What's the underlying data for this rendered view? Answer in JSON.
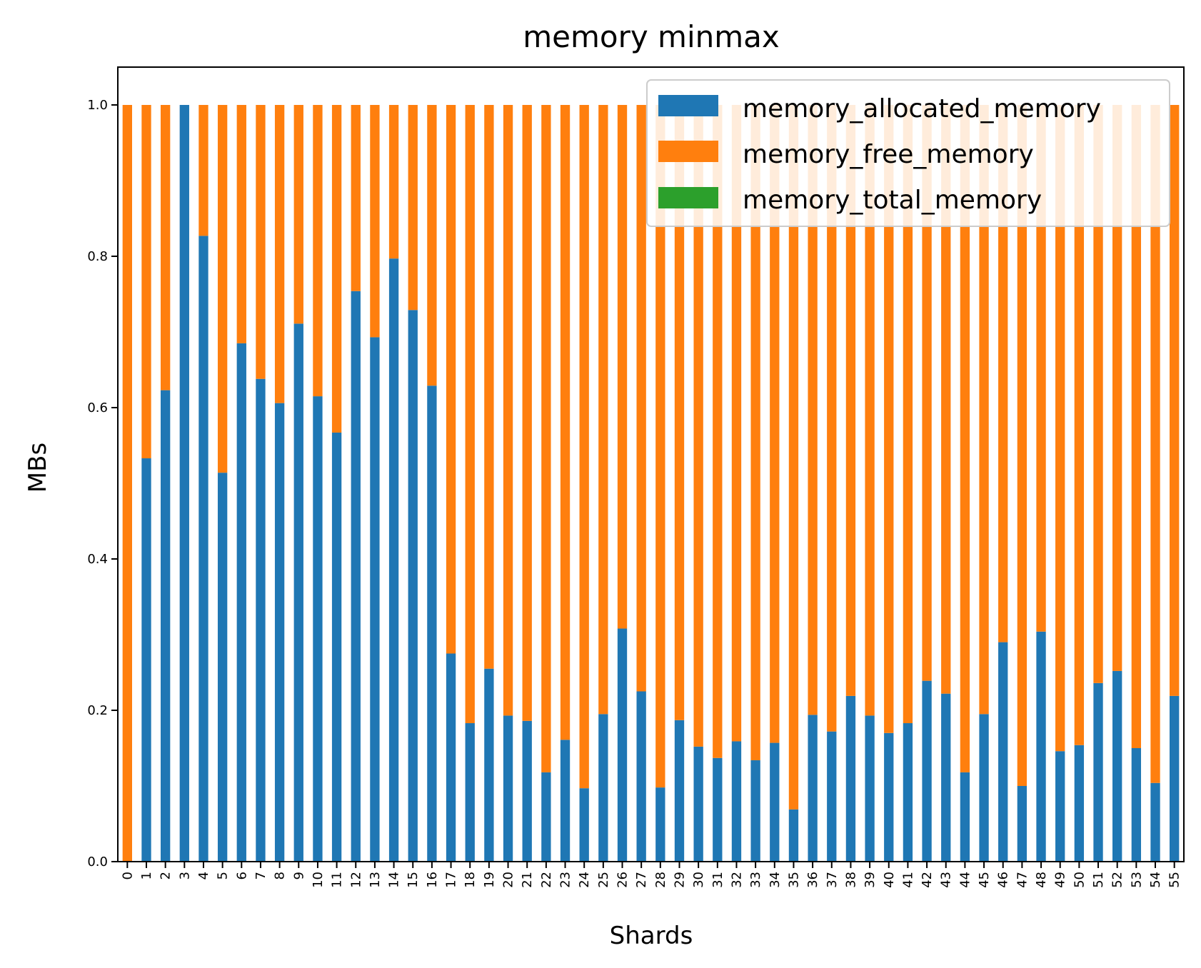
{
  "chart_data": {
    "type": "bar",
    "stacked": true,
    "title": "memory minmax",
    "xlabel": "Shards",
    "ylabel": "MBs",
    "ylim": [
      0,
      1.05
    ],
    "yticks": [
      "0.0",
      "0.2",
      "0.4",
      "0.6",
      "0.8",
      "1.0"
    ],
    "grid": false,
    "legend_position": "top-right",
    "categories": [
      "0",
      "1",
      "2",
      "3",
      "4",
      "5",
      "6",
      "7",
      "8",
      "9",
      "10",
      "11",
      "12",
      "13",
      "14",
      "15",
      "16",
      "17",
      "18",
      "19",
      "20",
      "21",
      "22",
      "23",
      "24",
      "25",
      "26",
      "27",
      "28",
      "29",
      "30",
      "31",
      "32",
      "33",
      "34",
      "35",
      "36",
      "37",
      "38",
      "39",
      "40",
      "41",
      "42",
      "43",
      "44",
      "45",
      "46",
      "47",
      "48",
      "49",
      "50",
      "51",
      "52",
      "53",
      "54",
      "55"
    ],
    "series": [
      {
        "name": "memory_allocated_memory",
        "color": "#1f77b4",
        "values": [
          0.0,
          0.533,
          0.623,
          1.0,
          0.827,
          0.514,
          0.685,
          0.638,
          0.606,
          0.711,
          0.615,
          0.567,
          0.754,
          0.693,
          0.797,
          0.729,
          0.629,
          0.275,
          0.183,
          0.255,
          0.193,
          0.186,
          0.118,
          0.161,
          0.097,
          0.195,
          0.308,
          0.225,
          0.098,
          0.187,
          0.152,
          0.137,
          0.159,
          0.134,
          0.157,
          0.069,
          0.194,
          0.172,
          0.219,
          0.193,
          0.17,
          0.183,
          0.239,
          0.222,
          0.118,
          0.195,
          0.29,
          0.1,
          0.304,
          0.146,
          0.154,
          0.236,
          0.252,
          0.15,
          0.104,
          0.219
        ]
      },
      {
        "name": "memory_free_memory",
        "color": "#ff7f0e",
        "values": [
          1.0,
          0.467,
          0.377,
          0.0,
          0.173,
          0.486,
          0.315,
          0.362,
          0.394,
          0.289,
          0.385,
          0.433,
          0.246,
          0.307,
          0.203,
          0.271,
          0.371,
          0.725,
          0.817,
          0.745,
          0.807,
          0.814,
          0.882,
          0.839,
          0.903,
          0.805,
          0.692,
          0.775,
          0.902,
          0.813,
          0.848,
          0.863,
          0.841,
          0.866,
          0.843,
          0.931,
          0.806,
          0.828,
          0.781,
          0.807,
          0.83,
          0.817,
          0.761,
          0.778,
          0.882,
          0.805,
          0.71,
          0.9,
          0.696,
          0.854,
          0.846,
          0.764,
          0.748,
          0.85,
          0.896,
          0.781
        ]
      },
      {
        "name": "memory_total_memory",
        "color": "#2ca02c",
        "values": [
          0,
          0,
          0,
          0,
          0,
          0,
          0,
          0,
          0,
          0,
          0,
          0,
          0,
          0,
          0,
          0,
          0,
          0,
          0,
          0,
          0,
          0,
          0,
          0,
          0,
          0,
          0,
          0,
          0,
          0,
          0,
          0,
          0,
          0,
          0,
          0,
          0,
          0,
          0,
          0,
          0,
          0,
          0,
          0,
          0,
          0,
          0,
          0,
          0,
          0,
          0,
          0,
          0,
          0,
          0,
          0
        ]
      }
    ]
  }
}
